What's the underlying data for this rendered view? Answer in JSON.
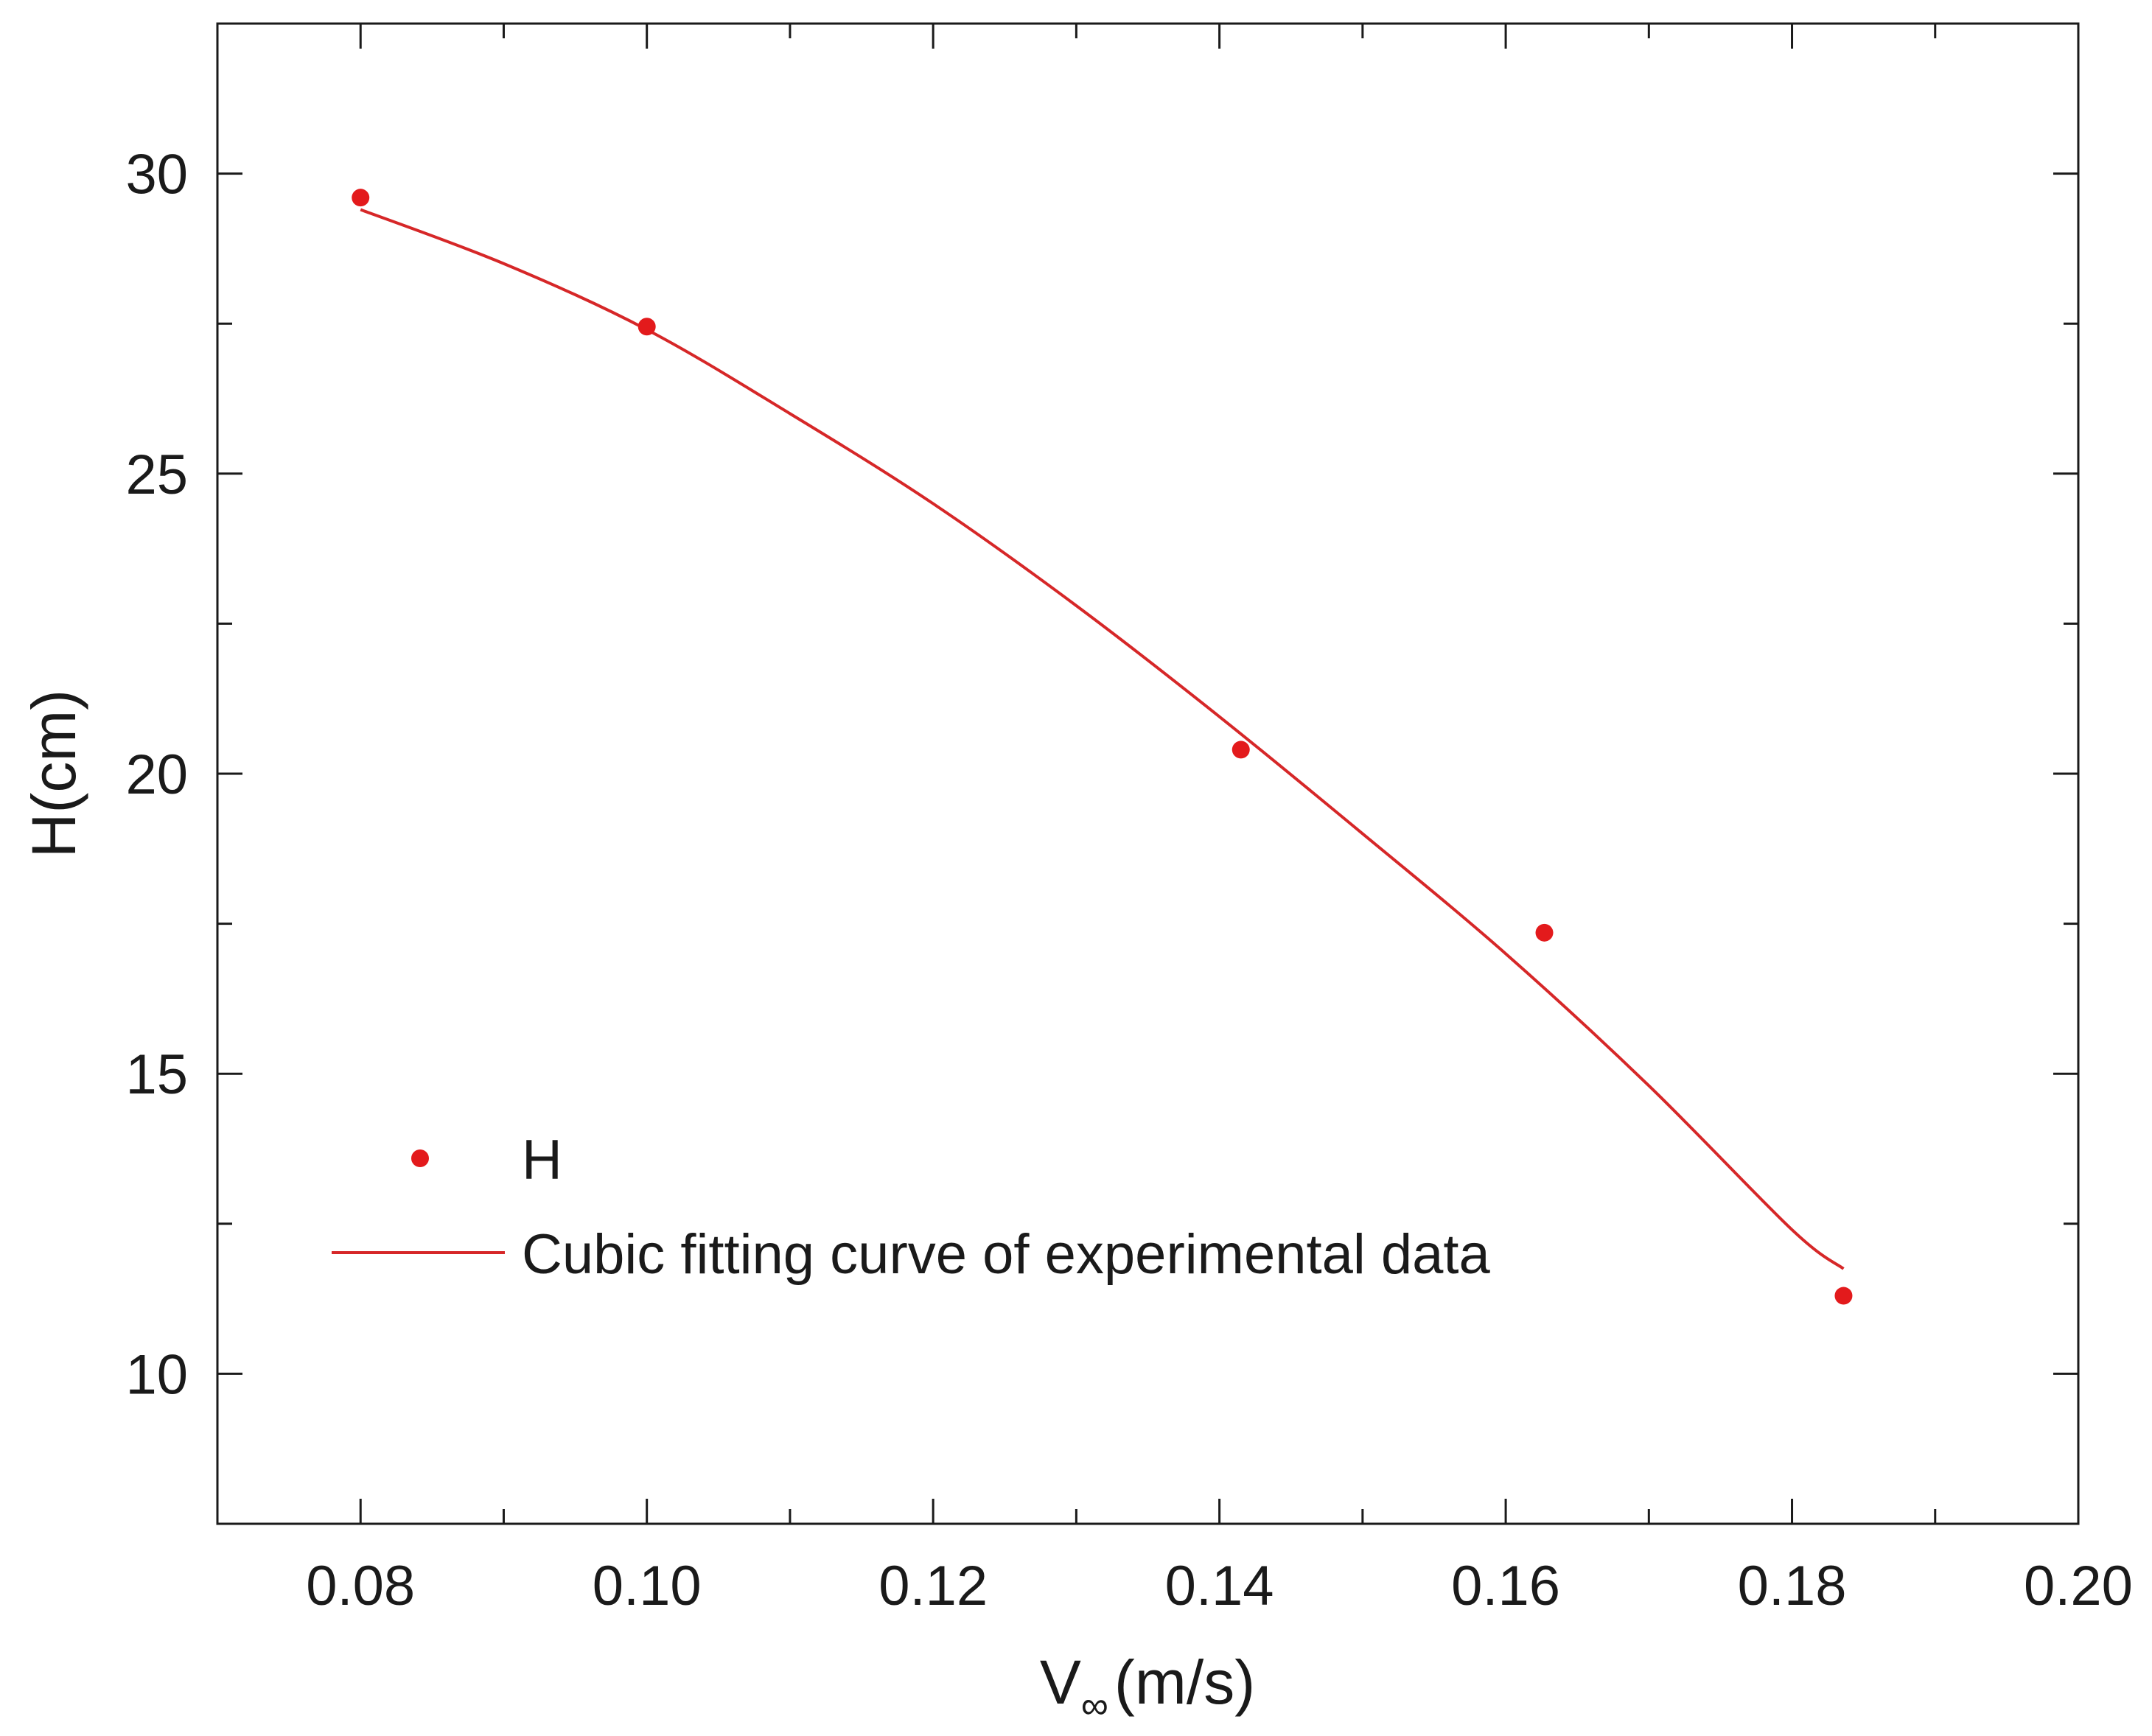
{
  "chart_data": {
    "type": "scatter",
    "title": "",
    "xlabel": {
      "main": "V",
      "subscript": "∞",
      "unit": "(m/s)"
    },
    "ylabel": "H(cm)",
    "xlim": [
      0.07,
      0.2
    ],
    "ylim": [
      7.5,
      32.5
    ],
    "x_ticks": [
      0.08,
      0.1,
      0.12,
      0.14,
      0.16,
      0.18,
      0.2
    ],
    "x_tick_labels": [
      "0.08",
      "0.10",
      "0.12",
      "0.14",
      "0.16",
      "0.18",
      "0.20"
    ],
    "x_minor_ticks": [
      0.07,
      0.09,
      0.11,
      0.13,
      0.15,
      0.17,
      0.19
    ],
    "y_ticks": [
      10,
      15,
      20,
      25,
      30
    ],
    "y_tick_labels": [
      "10",
      "15",
      "20",
      "25",
      "30"
    ],
    "y_minor_ticks": [
      12.5,
      17.5,
      22.5,
      27.5
    ],
    "grid": false,
    "legend_position": "bottom-left",
    "series": [
      {
        "name": "H",
        "kind": "points",
        "color": "#e31a1c",
        "x": [
          0.08,
          0.1,
          0.1415,
          0.1627,
          0.1836
        ],
        "y": [
          29.6,
          27.45,
          20.4,
          17.35,
          11.3
        ]
      },
      {
        "name": "Cubic fitting curve of experimental data",
        "kind": "line",
        "color": "#d62728",
        "x": [
          0.08,
          0.09,
          0.1,
          0.11,
          0.12,
          0.13,
          0.14,
          0.15,
          0.16,
          0.17,
          0.18,
          0.1836
        ],
        "y": [
          29.4,
          28.5,
          27.4,
          26.0,
          24.5,
          22.8,
          20.95,
          19.0,
          17.0,
          14.8,
          12.4,
          11.75
        ]
      }
    ]
  }
}
